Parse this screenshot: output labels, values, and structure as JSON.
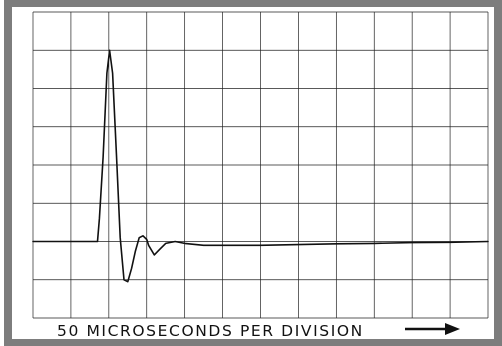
{
  "chart_data": {
    "type": "line",
    "title": "",
    "xlabel": "50 MICROSECONDS PER DIVISION",
    "ylabel": "",
    "x_units": "divisions (50 microseconds each)",
    "y_units": "divisions",
    "xlim": [
      0,
      12
    ],
    "ylim": [
      -2,
      6
    ],
    "grid": true,
    "grid_divisions": {
      "x": 12,
      "y": 8
    },
    "arrow": "right",
    "series": [
      {
        "x": [
          0,
          1.7,
          1.75,
          1.85,
          1.95,
          2.02,
          2.1,
          2.2,
          2.3,
          2.4,
          2.5,
          2.6,
          2.7,
          2.8,
          2.9,
          3.0,
          3.05,
          3.2,
          3.35,
          3.5,
          3.75,
          4.0,
          4.5,
          5,
          6,
          7,
          8,
          9,
          10,
          11,
          12
        ],
        "y": [
          0,
          0,
          0.6,
          2.2,
          4.4,
          5.0,
          4.4,
          2.3,
          0.1,
          -1.0,
          -1.05,
          -0.7,
          -0.25,
          0.1,
          0.15,
          0.05,
          -0.1,
          -0.35,
          -0.2,
          -0.05,
          0.0,
          -0.05,
          -0.1,
          -0.1,
          -0.1,
          -0.08,
          -0.06,
          -0.05,
          -0.03,
          -0.02,
          0.0
        ]
      }
    ]
  }
}
